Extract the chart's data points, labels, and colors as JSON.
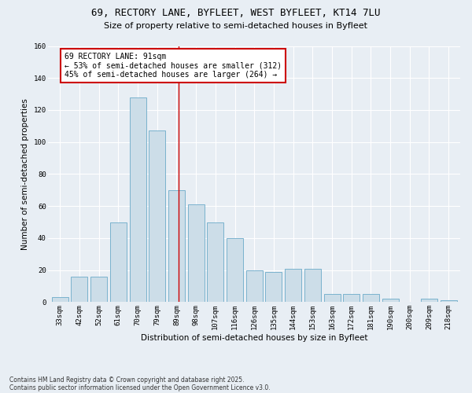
{
  "title": "69, RECTORY LANE, BYFLEET, WEST BYFLEET, KT14 7LU",
  "subtitle": "Size of property relative to semi-detached houses in Byfleet",
  "xlabel": "Distribution of semi-detached houses by size in Byfleet",
  "ylabel": "Number of semi-detached properties",
  "bins": [
    "33sqm",
    "42sqm",
    "52sqm",
    "61sqm",
    "70sqm",
    "79sqm",
    "89sqm",
    "98sqm",
    "107sqm",
    "116sqm",
    "126sqm",
    "135sqm",
    "144sqm",
    "153sqm",
    "163sqm",
    "172sqm",
    "181sqm",
    "190sqm",
    "200sqm",
    "209sqm",
    "218sqm"
  ],
  "bar_heights": [
    3,
    16,
    16,
    50,
    128,
    107,
    70,
    61,
    50,
    40,
    20,
    19,
    21,
    21,
    5,
    5,
    5,
    2,
    0,
    2,
    1
  ],
  "bar_color": "#ccdde8",
  "bar_edge_color": "#6aaac8",
  "annotation_title": "69 RECTORY LANE: 91sqm",
  "annotation_line1": "← 53% of semi-detached houses are smaller (312)",
  "annotation_line2": "45% of semi-detached houses are larger (264) →",
  "annotation_box_color": "#ffffff",
  "annotation_border_color": "#cc0000",
  "vline_color": "#cc0000",
  "vline_x": 6.1,
  "ylim": [
    0,
    160
  ],
  "yticks": [
    0,
    20,
    40,
    60,
    80,
    100,
    120,
    140,
    160
  ],
  "footnote1": "Contains HM Land Registry data © Crown copyright and database right 2025.",
  "footnote2": "Contains public sector information licensed under the Open Government Licence v3.0.",
  "bg_color": "#e8eef4",
  "plot_bg_color": "#e8eef4",
  "title_fontsize": 9,
  "subtitle_fontsize": 8,
  "axis_label_fontsize": 7.5,
  "tick_fontsize": 6.5,
  "annotation_fontsize": 7
}
